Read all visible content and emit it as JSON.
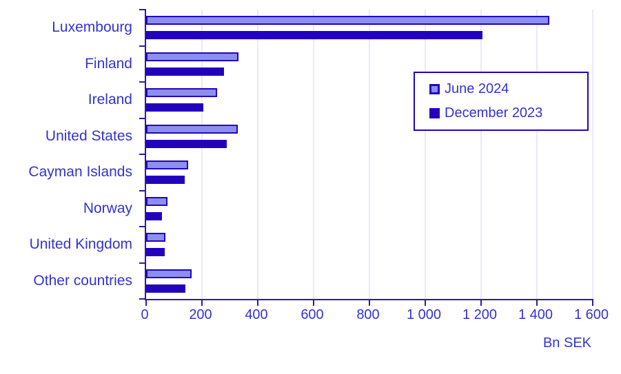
{
  "chart_data": {
    "type": "bar",
    "orientation": "horizontal",
    "title": "",
    "xlabel": "Bn SEK",
    "ylabel": "",
    "categories": [
      "Luxembourg",
      "Finland",
      "Ireland",
      "United States",
      "Cayman Islands",
      "Norway",
      "United Kingdom",
      "Other countries"
    ],
    "series": [
      {
        "name": "June 2024",
        "values": [
          1435,
          320,
          245,
          318,
          141,
          67,
          60,
          152
        ]
      },
      {
        "name": "December 2023",
        "values": [
          1205,
          280,
          205,
          290,
          138,
          58,
          66,
          140
        ]
      }
    ],
    "xlim": [
      0,
      1600
    ],
    "x_ticks": [
      {
        "value": 0,
        "label": "0"
      },
      {
        "value": 200,
        "label": "200"
      },
      {
        "value": 400,
        "label": "400"
      },
      {
        "value": 600,
        "label": "600"
      },
      {
        "value": 800,
        "label": "800"
      },
      {
        "value": 1000,
        "label": "1 000"
      },
      {
        "value": 1200,
        "label": "1 200"
      },
      {
        "value": 1400,
        "label": "1 400"
      },
      {
        "value": 1600,
        "label": "1 600"
      }
    ],
    "grid": "vertical-light",
    "legend_position": "inside-upper-right",
    "colors": {
      "june_fill": "#8b90ee",
      "june_border": "#2302be",
      "december_fill": "#2302be",
      "axis": "#2a1aa4",
      "text": "#3333cc",
      "gridline": "#e9e9f8",
      "background": "#ffffff",
      "legend_border": "#2302be"
    }
  }
}
